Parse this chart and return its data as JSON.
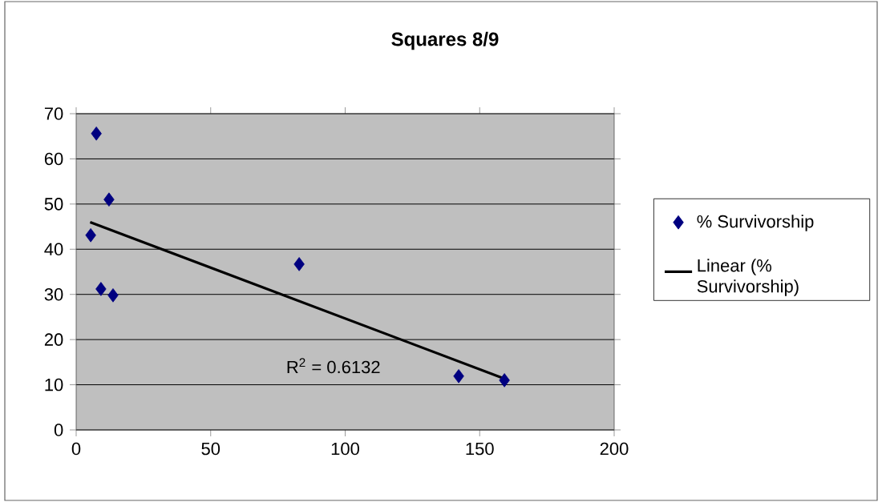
{
  "chart_data": {
    "type": "scatter",
    "title": "Squares 8/9",
    "x": [
      7.5,
      12.2,
      5.4,
      9.2,
      13.7,
      82.9,
      142.2,
      159.2
    ],
    "series": [
      {
        "name": "% Survivorship",
        "color": "#000080",
        "marker": "diamond",
        "values": [
          65.6,
          51.0,
          43.1,
          31.2,
          29.8,
          36.7,
          11.9,
          11.0
        ]
      },
      {
        "name": "Linear (% Survivorship)",
        "type": "line",
        "color": "#000000",
        "marker": "none",
        "x": [
          5.2,
          159
        ],
        "values": [
          46.0,
          11.4
        ]
      }
    ],
    "annotations": [
      "R$^{2}$ = 0.6132"
    ],
    "xlim": [
      0,
      200
    ],
    "xticks": [
      0,
      50,
      100,
      150,
      200
    ],
    "ylim": [
      0,
      70
    ],
    "yticks": [
      0,
      10,
      20,
      30,
      40,
      50,
      60,
      70
    ],
    "grid": "y",
    "legend": "right"
  }
}
